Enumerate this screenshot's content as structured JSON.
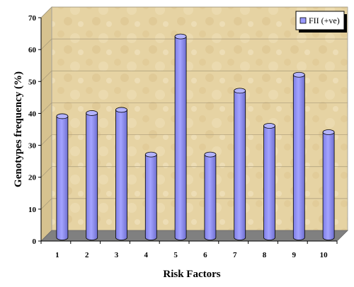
{
  "chart_data": {
    "type": "bar",
    "categories": [
      "1",
      "2",
      "3",
      "4",
      "5",
      "6",
      "7",
      "8",
      "9",
      "10"
    ],
    "series": [
      {
        "name": "FII (+ve)",
        "values": [
          38,
          39,
          40,
          26,
          63,
          26,
          46,
          35,
          51,
          33
        ]
      }
    ],
    "xlabel": "Risk Factors",
    "ylabel": "Genotypes frequency (%)",
    "ylim": [
      0,
      70
    ],
    "yticks": [
      "0",
      "10",
      "20",
      "30",
      "40",
      "50",
      "60",
      "70"
    ],
    "grid": true,
    "legend_position": "top-right",
    "colors": {
      "bar": "#9999ff",
      "bar_top": "#b3b3ff",
      "bar_outline": "#000000",
      "floor": "#808080",
      "wall": "#e8d6a8"
    }
  }
}
